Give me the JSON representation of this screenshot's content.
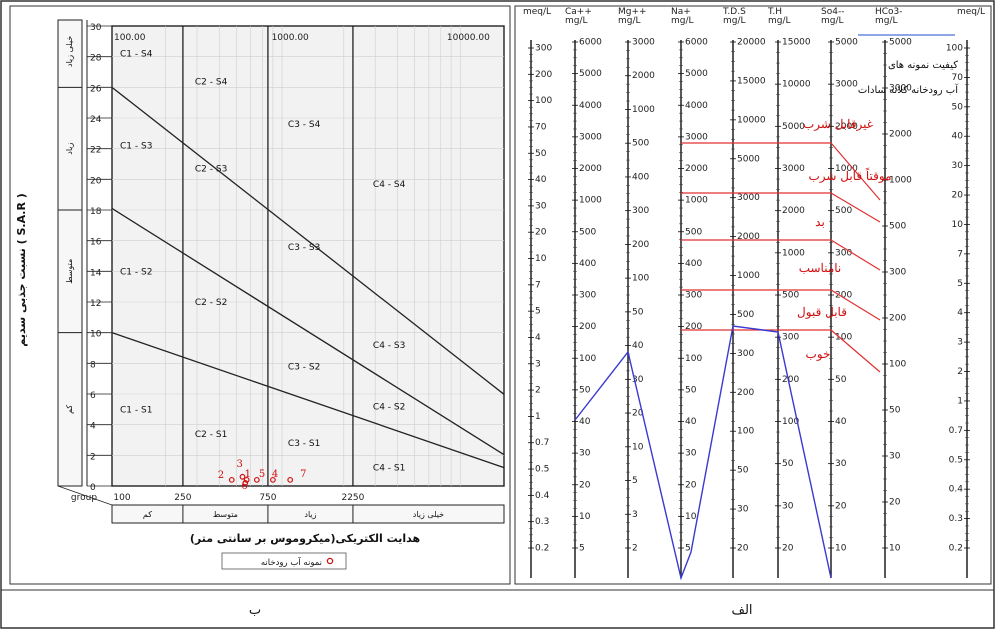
{
  "captions": {
    "left": "ب",
    "right": "الف"
  },
  "wilcox": {
    "chart_data": {
      "type": "scatter",
      "title": "",
      "xscale": "log",
      "x_ticks": [
        "100.00",
        "1000.00",
        "10000.00"
      ],
      "x_bottom_ticks": [
        "100",
        "250",
        "750",
        "2250"
      ],
      "x_bottom_prefix": "group",
      "y_ticks": [
        "30",
        "28",
        "26",
        "24",
        "22",
        "20",
        "18",
        "16",
        "14",
        "12",
        "10",
        "8",
        "6",
        "4",
        "2",
        "0"
      ],
      "ylim": [
        0,
        30
      ],
      "xlabel": "هدایت الکتریکی(میکروموس بر سانتی متر)",
      "ylabel": "نسبت جذبی سدیم ( S.A.R )",
      "salinity_classes": [
        "کم",
        "متوسط",
        "زیاد",
        "خیلی زیاد"
      ],
      "sodium_classes": [
        "کم",
        "متوسط",
        "زیاد",
        "خیلی زیاد"
      ],
      "class_labels": [
        "C1 - S4",
        "C2 - S4",
        "C3 - S4",
        "C4 - S4",
        "C1 - S3",
        "C2 - S3",
        "C3 - S3",
        "C4 - S3",
        "C1 - S2",
        "C2 - S2",
        "C3 - S2",
        "C4 - S2",
        "C1 - S1",
        "C2 - S1",
        "C3 - S1",
        "C4 - S1"
      ],
      "legend": "نمونه آب رودخانه",
      "series": [
        {
          "name": "نمونه آب رودخانه",
          "points": [
            {
              "label": "1",
              "ec": 570,
              "sar": 0.4
            },
            {
              "label": "2",
              "ec": 470,
              "sar": 0.4
            },
            {
              "label": "3",
              "ec": 540,
              "sar": 0.6
            },
            {
              "label": "4",
              "ec": 800,
              "sar": 0.4
            },
            {
              "label": "5",
              "ec": 650,
              "sar": 0.4
            },
            {
              "label": "6",
              "ec": 560,
              "sar": 0.2
            },
            {
              "label": "7",
              "ec": 1000,
              "sar": 0.4
            }
          ]
        }
      ]
    }
  },
  "schoeller": {
    "chart_data": {
      "type": "line",
      "title": "کیفیت نمونه های آب رودخانه کلاته سادات",
      "columns": [
        {
          "header": "meq/L",
          "ticks": [
            "300",
            "200",
            "100",
            "70",
            "50",
            "40",
            "30",
            "20",
            "10",
            "7",
            "5",
            "4",
            "3",
            "2",
            "1",
            "0.7",
            "0.5",
            "0.4",
            "0.3",
            "0.2"
          ]
        },
        {
          "header": "Ca++ mg/L",
          "ticks": [
            "6000",
            "5000",
            "4000",
            "3000",
            "2000",
            "1000",
            "500",
            "400",
            "300",
            "200",
            "100",
            "50",
            "40",
            "30",
            "20",
            "10",
            "5"
          ]
        },
        {
          "header": "Mg++ mg/L",
          "ticks": [
            "3000",
            "2000",
            "1000",
            "500",
            "400",
            "300",
            "200",
            "100",
            "50",
            "40",
            "30",
            "20",
            "10",
            "5",
            "3",
            "2"
          ]
        },
        {
          "header": "Na+ mg/L",
          "ticks": [
            "6000",
            "5000",
            "4000",
            "3000",
            "2000",
            "1000",
            "500",
            "400",
            "300",
            "200",
            "100",
            "50",
            "40",
            "30",
            "20",
            "10",
            "5"
          ]
        },
        {
          "header": "T.D.S mg/L",
          "ticks": [
            "20000",
            "15000",
            "10000",
            "5000",
            "3000",
            "2000",
            "1000",
            "500",
            "300",
            "200",
            "100",
            "50",
            "30",
            "20"
          ]
        },
        {
          "header": "T.H mg/L",
          "ticks": [
            "15000",
            "10000",
            "5000",
            "3000",
            "2000",
            "1000",
            "500",
            "300",
            "200",
            "100",
            "50",
            "30",
            "20"
          ]
        },
        {
          "header": "So4-- mg/L",
          "ticks": [
            "5000",
            "3000",
            "2000",
            "1000",
            "500",
            "300",
            "200",
            "100",
            "50",
            "40",
            "30",
            "20",
            "10"
          ]
        },
        {
          "header": "HCo3- mg/L",
          "ticks": [
            "5000",
            "3000",
            "2000",
            "1000",
            "500",
            "300",
            "200",
            "100",
            "50",
            "30",
            "20",
            "10"
          ]
        },
        {
          "header": "meq/L",
          "ticks": [
            "100",
            "70",
            "50",
            "40",
            "30",
            "20",
            "10",
            "7",
            "5",
            "4",
            "3",
            "2",
            "1",
            "0.7",
            "0.5",
            "0.4",
            "0.3",
            "0.2"
          ]
        }
      ],
      "quality_classes": [
        "غیرقابل شرب",
        "موقتاً قابل شرب",
        "بد",
        "نامناسب",
        "قابل قبول",
        "خوب"
      ],
      "series": [
        {
          "name": "کیفیت نمونه های آب رودخانه کلاته سادات",
          "profile": [
            "start",
            "Ca++",
            "Mg++",
            "Na+",
            "Na+",
            "T.D.S",
            "T.H",
            "So4--"
          ]
        }
      ]
    }
  }
}
